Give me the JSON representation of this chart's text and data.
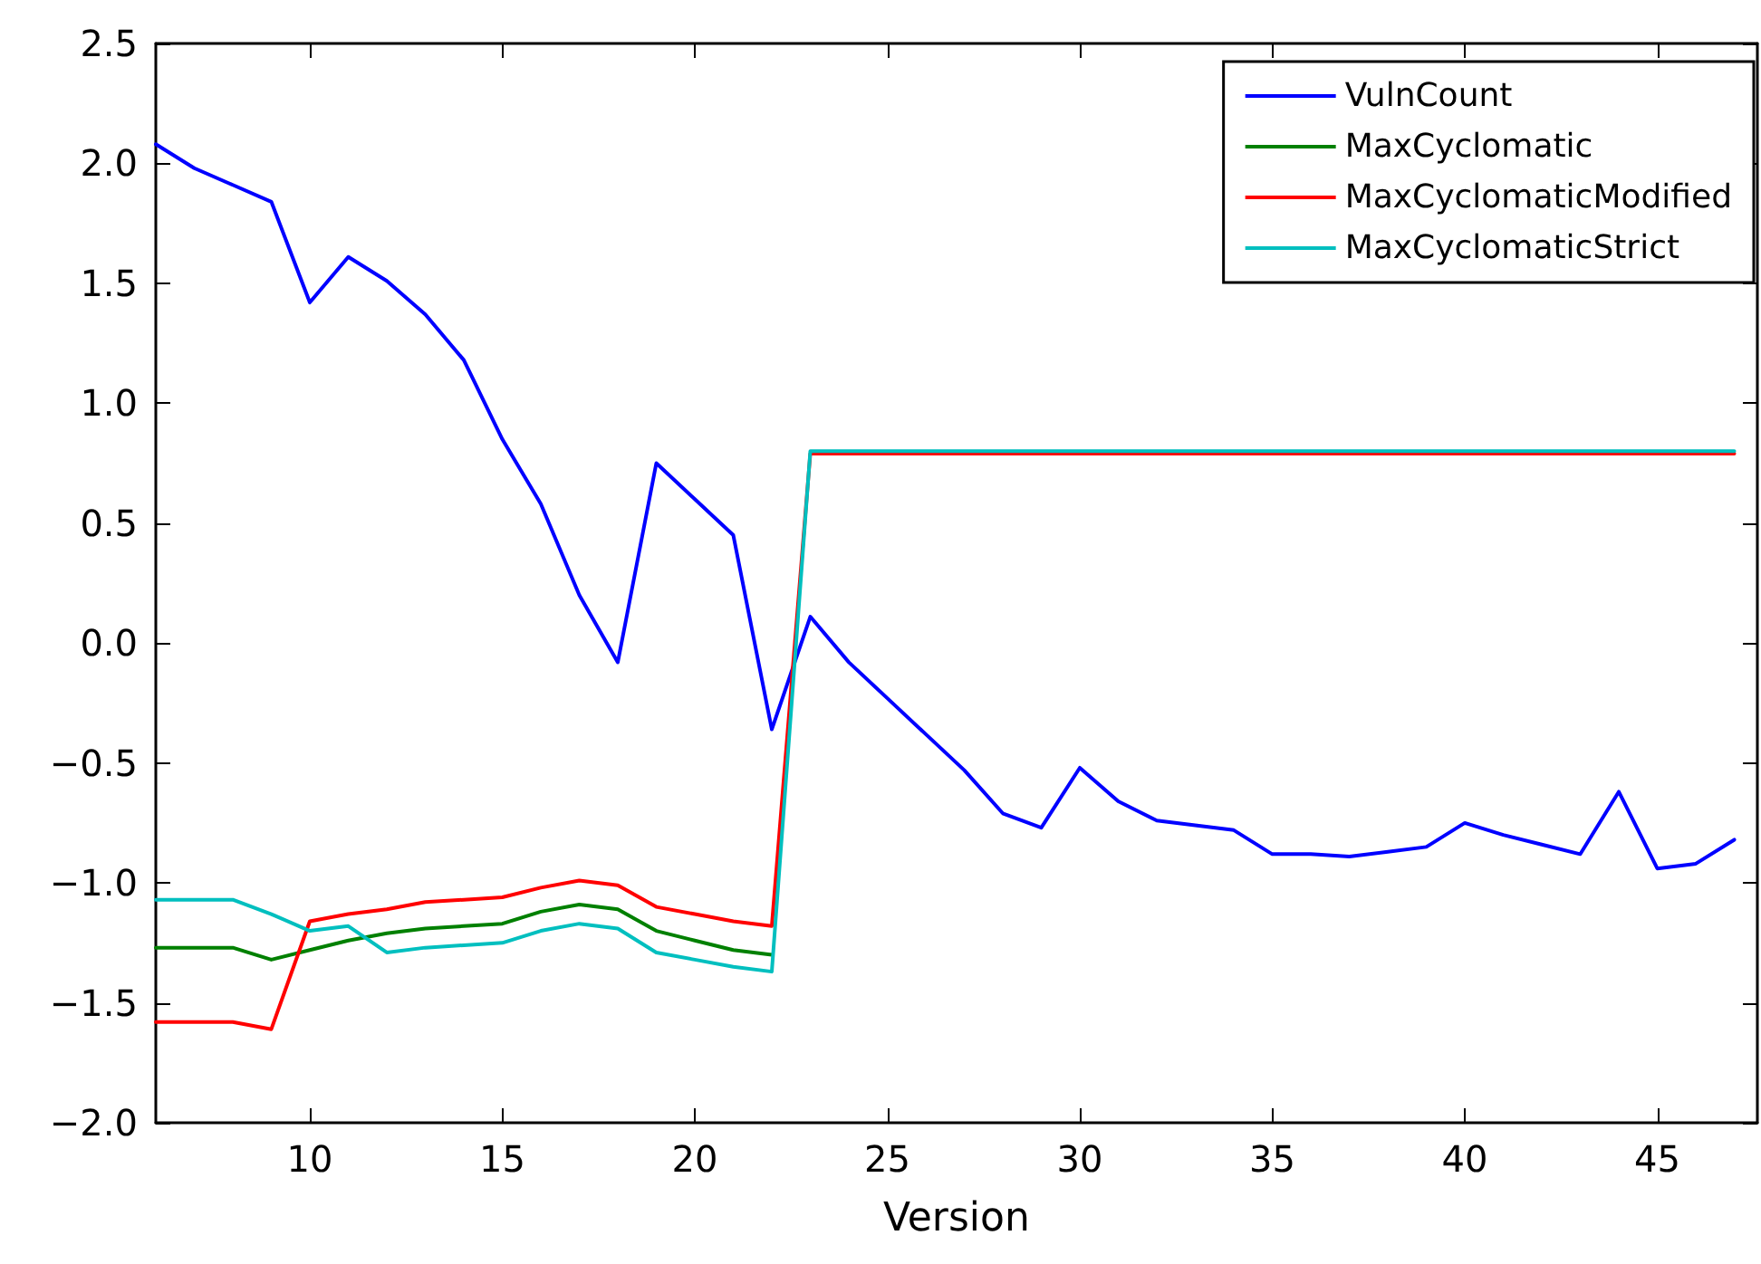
{
  "chart_data": {
    "type": "line",
    "xlabel": "Version",
    "x": [
      6,
      7,
      8,
      9,
      10,
      11,
      12,
      13,
      14,
      15,
      16,
      17,
      18,
      19,
      20,
      21,
      22,
      23,
      24,
      25,
      26,
      27,
      28,
      29,
      30,
      31,
      32,
      33,
      34,
      35,
      36,
      37,
      38,
      39,
      40,
      41,
      42,
      43,
      44,
      45,
      46,
      47
    ],
    "series": [
      {
        "name": "VulnCount",
        "color": "#0000ff",
        "values": [
          2.08,
          1.98,
          1.91,
          1.84,
          1.42,
          1.61,
          1.51,
          1.37,
          1.18,
          0.85,
          0.58,
          0.2,
          -0.08,
          0.75,
          0.6,
          0.45,
          -0.36,
          0.11,
          -0.08,
          -0.23,
          -0.38,
          -0.53,
          -0.71,
          -0.77,
          -0.52,
          -0.66,
          -0.74,
          -0.76,
          -0.78,
          -0.88,
          -0.88,
          -0.89,
          -0.87,
          -0.85,
          -0.75,
          -0.8,
          -0.84,
          -0.88,
          -0.62,
          -0.94,
          -0.92,
          -0.82
        ]
      },
      {
        "name": "MaxCyclomatic",
        "color": "#008000",
        "values": [
          -1.27,
          -1.27,
          -1.27,
          -1.32,
          -1.28,
          -1.24,
          -1.21,
          -1.19,
          -1.18,
          -1.17,
          -1.12,
          -1.09,
          -1.11,
          -1.2,
          -1.24,
          -1.28,
          -1.3,
          null,
          null,
          null,
          null,
          null,
          null,
          null,
          null,
          null,
          null,
          null,
          null,
          null,
          null,
          null,
          null,
          null,
          null,
          null,
          null,
          null,
          null,
          null,
          null,
          null
        ]
      },
      {
        "name": "MaxCyclomaticModified",
        "color": "#ff0000",
        "values": [
          -1.58,
          -1.58,
          -1.58,
          -1.61,
          -1.16,
          -1.13,
          -1.11,
          -1.08,
          -1.07,
          -1.06,
          -1.02,
          -0.99,
          -1.01,
          -1.1,
          -1.13,
          -1.16,
          -1.18,
          0.79,
          0.79,
          0.79,
          0.79,
          0.79,
          0.79,
          0.79,
          0.79,
          0.79,
          0.79,
          0.79,
          0.79,
          0.79,
          0.79,
          0.79,
          0.79,
          0.79,
          0.79,
          0.79,
          0.79,
          0.79,
          0.79,
          0.79,
          0.79,
          0.79
        ]
      },
      {
        "name": "MaxCyclomaticStrict",
        "color": "#00bfbf",
        "values": [
          -1.07,
          -1.07,
          -1.07,
          -1.13,
          -1.2,
          -1.18,
          -1.29,
          -1.27,
          -1.26,
          -1.25,
          -1.2,
          -1.17,
          -1.19,
          -1.29,
          -1.32,
          -1.35,
          -1.37,
          0.8,
          0.8,
          0.8,
          0.8,
          0.8,
          0.8,
          0.8,
          0.8,
          0.8,
          0.8,
          0.8,
          0.8,
          0.8,
          0.8,
          0.8,
          0.8,
          0.8,
          0.8,
          0.8,
          0.8,
          0.8,
          0.8,
          0.8,
          0.8,
          0.8
        ]
      }
    ],
    "xlim": [
      6,
      47.6
    ],
    "xticks": [
      10,
      15,
      20,
      25,
      30,
      35,
      40,
      45
    ],
    "ylim": [
      -2,
      2.5
    ],
    "yticks": [
      {
        "value": -2,
        "label": "−2.0"
      },
      {
        "value": -1.5,
        "label": "−1.5"
      },
      {
        "value": -1,
        "label": "−1.0"
      },
      {
        "value": -0.5,
        "label": "−0.5"
      },
      {
        "value": 0,
        "label": "0.0"
      },
      {
        "value": 0.5,
        "label": "0.5"
      },
      {
        "value": 1,
        "label": "1.0"
      },
      {
        "value": 1.5,
        "label": "1.5"
      },
      {
        "value": 2,
        "label": "2.0"
      },
      {
        "value": 2.5,
        "label": "2.5"
      }
    ],
    "grid": false,
    "legend": "top right",
    "marker": "none",
    "line_style": "solid"
  }
}
